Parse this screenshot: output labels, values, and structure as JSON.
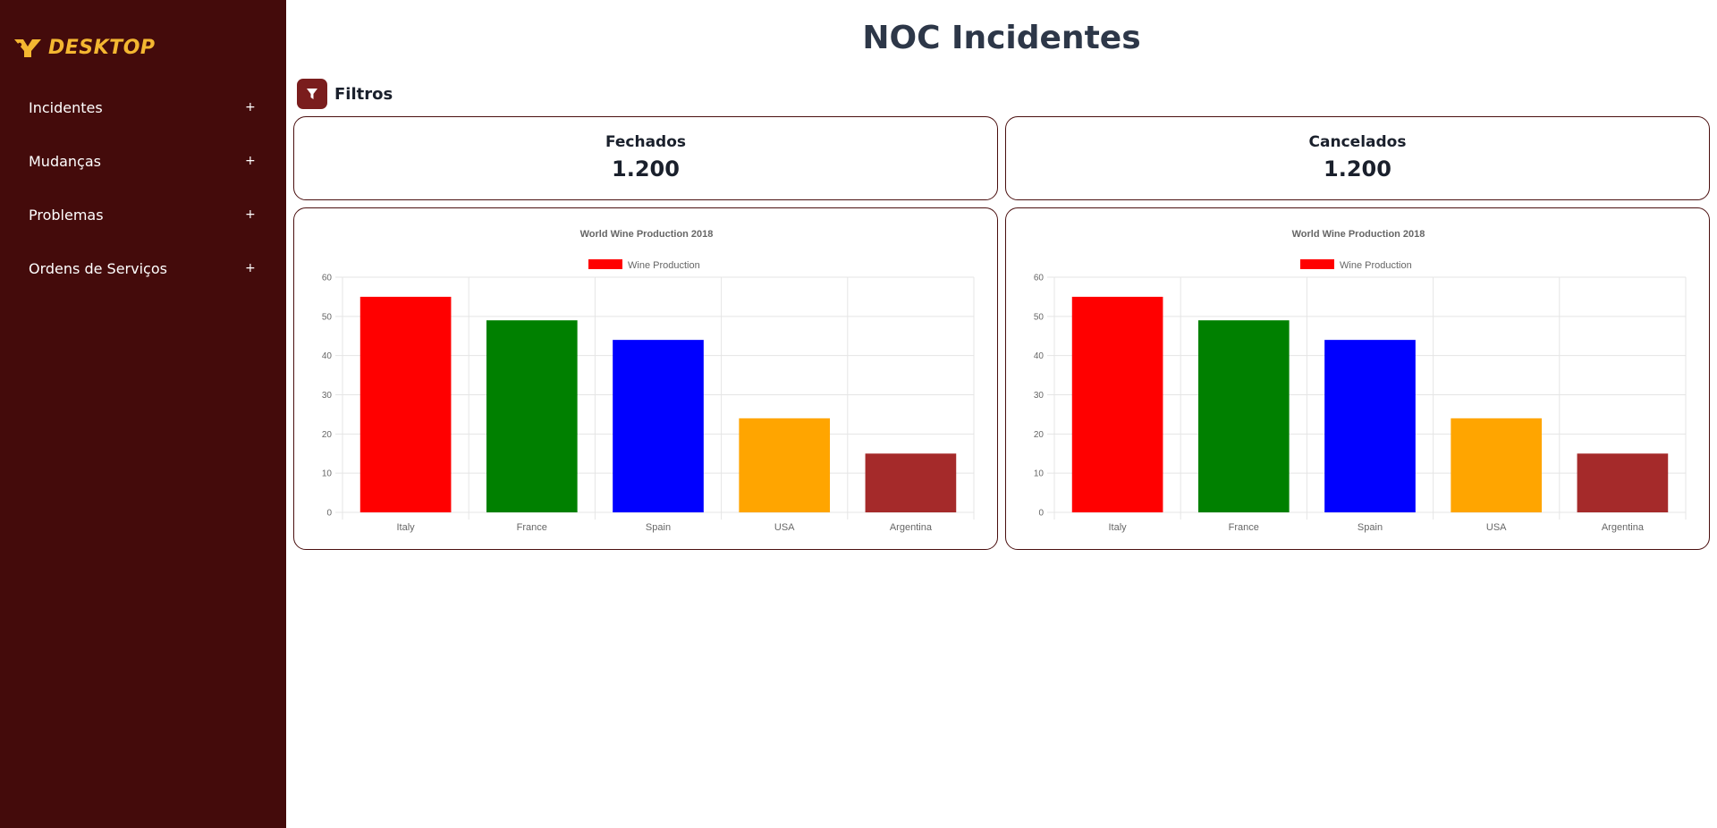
{
  "sidebar": {
    "logo_text": "DESKTOP",
    "logo_icon": "desktop-logo-icon",
    "items": [
      {
        "label": "Incidentes",
        "toggle": "+"
      },
      {
        "label": "Mudanças",
        "toggle": "+"
      },
      {
        "label": "Problemas",
        "toggle": "+"
      },
      {
        "label": "Ordens de Serviços",
        "toggle": "+"
      }
    ]
  },
  "header": {
    "title": "NOC Incidentes"
  },
  "filters": {
    "label": "Filtros",
    "icon": "filter-icon"
  },
  "stats": [
    {
      "title": "Fechados",
      "value": "1.200"
    },
    {
      "title": "Cancelados",
      "value": "1.200"
    }
  ],
  "colors": {
    "sidebar_bg": "#440b0b",
    "logo": "#f4b731",
    "card_border": "#4a0f0f",
    "filter_button": "#7a1d1d"
  },
  "chart_data": [
    {
      "type": "bar",
      "title": "World Wine Production 2018",
      "legend": {
        "label": "Wine Production",
        "color": "#ff0000",
        "position": "top"
      },
      "categories": [
        "Italy",
        "France",
        "Spain",
        "USA",
        "Argentina"
      ],
      "values": [
        55,
        49,
        44,
        24,
        15
      ],
      "colors": [
        "#ff0000",
        "#008000",
        "#0000ff",
        "#ffa500",
        "#a52a2a"
      ],
      "ylim": [
        0,
        60
      ],
      "yticks": [
        "0",
        "10",
        "20",
        "30",
        "40",
        "50",
        "60"
      ],
      "grid": true
    },
    {
      "type": "bar",
      "title": "World Wine Production 2018",
      "legend": {
        "label": "Wine Production",
        "color": "#ff0000",
        "position": "top"
      },
      "categories": [
        "Italy",
        "France",
        "Spain",
        "USA",
        "Argentina"
      ],
      "values": [
        55,
        49,
        44,
        24,
        15
      ],
      "colors": [
        "#ff0000",
        "#008000",
        "#0000ff",
        "#ffa500",
        "#a52a2a"
      ],
      "ylim": [
        0,
        60
      ],
      "yticks": [
        "0",
        "10",
        "20",
        "30",
        "40",
        "50",
        "60"
      ],
      "grid": true
    }
  ]
}
